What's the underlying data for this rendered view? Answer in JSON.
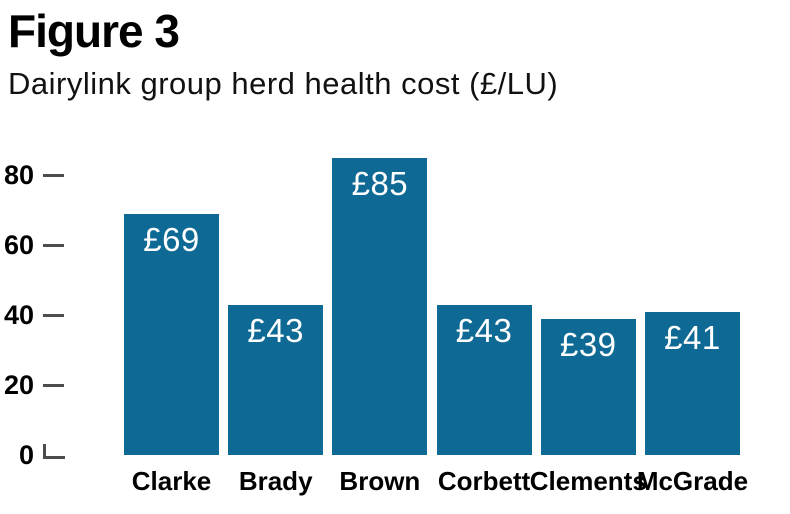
{
  "header": {
    "title": "Figure 3",
    "subtitle": "Dairylink group herd health cost (£/LU)"
  },
  "chart_data": {
    "type": "bar",
    "title": "Figure 3",
    "subtitle": "Dairylink group herd health cost (£/LU)",
    "categories": [
      "Clarke",
      "Brady",
      "Brown",
      "Corbett",
      "Clements",
      "McGrade"
    ],
    "values": [
      69,
      43,
      85,
      43,
      39,
      41
    ],
    "bar_labels": [
      "£69",
      "£43",
      "£85",
      "£43",
      "£39",
      "£41"
    ],
    "unit": "£/LU",
    "xlabel": "",
    "ylabel": "",
    "yticks": [
      80,
      60,
      40,
      20,
      0
    ],
    "ylim": [
      0,
      93
    ],
    "grid": false,
    "legend": "none",
    "colors": {
      "bar": "#0e6a94",
      "bar_label": "#ffffff",
      "axis_text": "#000000",
      "tick": "#4d4d4d",
      "background": "#ffffff"
    }
  }
}
